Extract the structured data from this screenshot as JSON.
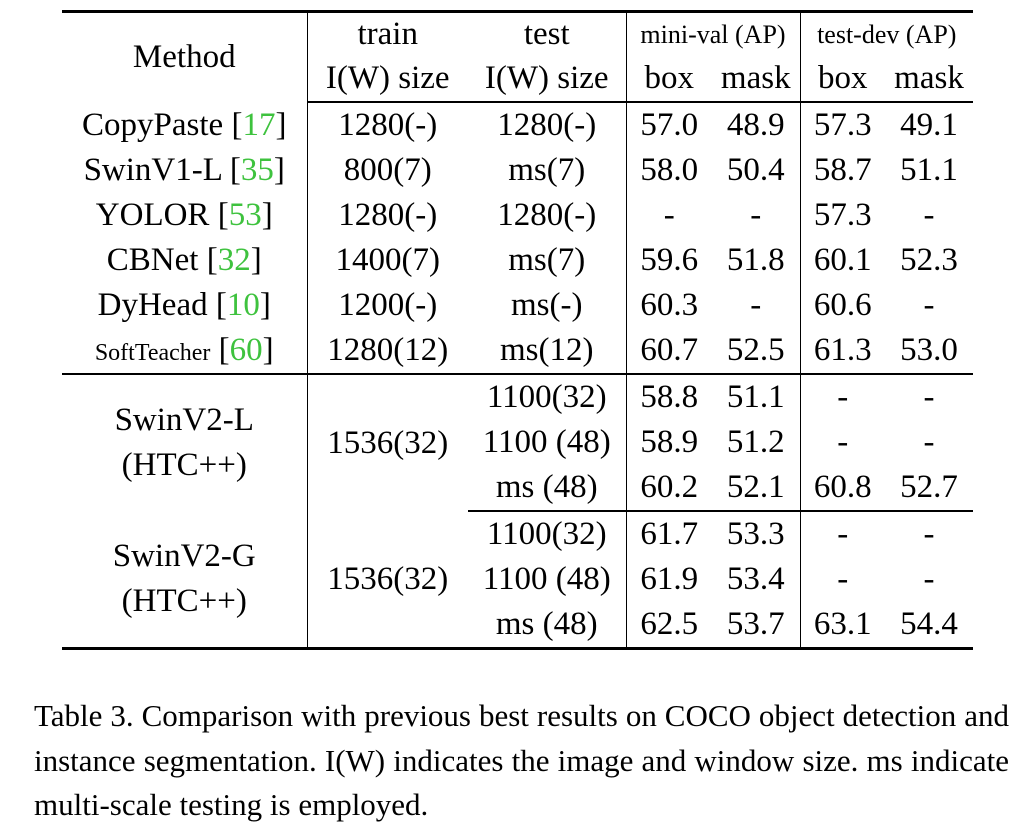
{
  "table": {
    "header": {
      "method": "Method",
      "train_top": "train",
      "train_bottom": "I(W) size",
      "test_top": "test",
      "test_bottom": "I(W) size",
      "minival_group": "mini-val (AP)",
      "testdev_group": "test-dev (AP)",
      "box": "box",
      "mask": "mask"
    },
    "prior_rows": [
      {
        "method": "CopyPaste",
        "ref": "17",
        "train": "1280(-)",
        "test": "1280(-)",
        "mv_box": "57.0",
        "mv_mask": "48.9",
        "td_box": "57.3",
        "td_mask": "49.1"
      },
      {
        "method": "SwinV1-L",
        "ref": "35",
        "train": "800(7)",
        "test": "ms(7)",
        "mv_box": "58.0",
        "mv_mask": "50.4",
        "td_box": "58.7",
        "td_mask": "51.1"
      },
      {
        "method": "YOLOR",
        "ref": "53",
        "train": "1280(-)",
        "test": "1280(-)",
        "mv_box": "-",
        "mv_mask": "-",
        "td_box": "57.3",
        "td_mask": "-"
      },
      {
        "method": "CBNet",
        "ref": "32",
        "train": "1400(7)",
        "test": "ms(7)",
        "mv_box": "59.6",
        "mv_mask": "51.8",
        "td_box": "60.1",
        "td_mask": "52.3"
      },
      {
        "method": "DyHead",
        "ref": "10",
        "train": "1200(-)",
        "test": "ms(-)",
        "mv_box": "60.3",
        "mv_mask": "-",
        "td_box": "60.6",
        "td_mask": "-"
      },
      {
        "method": "SoftTeacher",
        "ref": "60",
        "train": "1280(12)",
        "test": "ms(12)",
        "mv_box": "60.7",
        "mv_mask": "52.5",
        "td_box": "61.3",
        "td_mask": "53.0"
      }
    ],
    "groups": [
      {
        "name": "SwinV2-L",
        "variant": "(HTC++)",
        "train": "1536(32)",
        "rows": [
          {
            "test": "1100(32)",
            "mv_box": "58.8",
            "mv_mask": "51.1",
            "td_box": "-",
            "td_mask": "-"
          },
          {
            "test": "1100 (48)",
            "mv_box": "58.9",
            "mv_mask": "51.2",
            "td_box": "-",
            "td_mask": "-"
          },
          {
            "test": "ms (48)",
            "mv_box": "60.2",
            "mv_mask": "52.1",
            "td_box": "60.8",
            "td_mask": "52.7"
          }
        ]
      },
      {
        "name": "SwinV2-G",
        "variant": "(HTC++)",
        "train": "1536(32)",
        "rows": [
          {
            "test": "1100(32)",
            "mv_box": "61.7",
            "mv_mask": "53.3",
            "td_box": "-",
            "td_mask": "-"
          },
          {
            "test": "1100 (48)",
            "mv_box": "61.9",
            "mv_mask": "53.4",
            "td_box": "-",
            "td_mask": "-"
          },
          {
            "test": "ms (48)",
            "mv_box": "62.5",
            "mv_mask": "53.7",
            "td_box": "63.1",
            "td_mask": "54.4"
          }
        ]
      }
    ]
  },
  "caption": "Table 3. Comparison with previous best results on COCO object detection and instance segmentation. I(W) indicates the image and window size. ms indicate multi-scale testing is employed."
}
